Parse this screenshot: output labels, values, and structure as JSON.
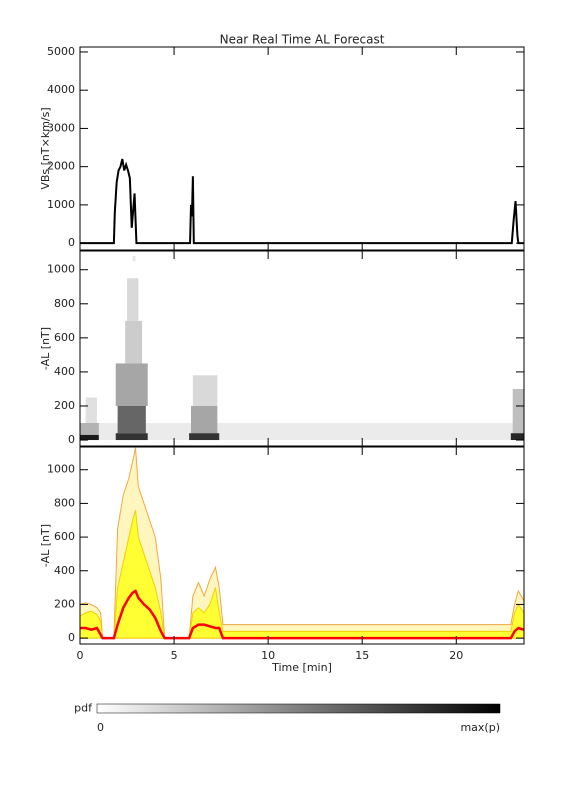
{
  "chart_data": [
    {
      "type": "line",
      "title": "Near Real Time AL Forecast",
      "ylabel": "VBs [nT×km/s]",
      "xlim": [
        0,
        23.6
      ],
      "xticks": [
        0,
        5,
        10,
        15,
        20
      ],
      "ylim": [
        -180,
        5130
      ],
      "yticks": [
        0,
        1000,
        2000,
        3000,
        4000,
        5000
      ],
      "color": "#000000",
      "x": [
        0,
        1.8,
        1.85,
        1.95,
        2.05,
        2.15,
        2.25,
        2.35,
        2.45,
        2.55,
        2.65,
        2.75,
        2.85,
        2.9,
        3.0,
        5.85,
        5.9,
        5.95,
        6.0,
        6.05,
        22.95,
        23.05,
        23.15,
        23.25,
        23.3,
        23.6
      ],
      "values": [
        0,
        0,
        800,
        1600,
        1900,
        2000,
        2200,
        1900,
        2050,
        1900,
        1700,
        400,
        1000,
        1300,
        0,
        0,
        1000,
        700,
        1750,
        0,
        0,
        600,
        1100,
        200,
        0,
        0
      ]
    },
    {
      "type": "heatmap",
      "ylabel": "-AL [nT]",
      "xlim": [
        0,
        23.6
      ],
      "xticks": [
        0,
        5,
        10,
        15,
        20
      ],
      "ylim": [
        -35,
        1110
      ],
      "yticks": [
        0,
        200,
        400,
        600,
        800,
        1000
      ],
      "cells": [
        {
          "x": [
            0,
            23.6
          ],
          "y": [
            0,
            100
          ],
          "p": 0.08
        },
        {
          "x": [
            0.3,
            0.9
          ],
          "y": [
            100,
            250
          ],
          "p": 0.12
        },
        {
          "x": [
            0,
            1.0
          ],
          "y": [
            30,
            100
          ],
          "p": 0.3
        },
        {
          "x": [
            0,
            1.0
          ],
          "y": [
            0,
            30
          ],
          "p": 0.9
        },
        {
          "x": [
            2.8,
            2.95
          ],
          "y": [
            1050,
            1080
          ],
          "p": 0.1
        },
        {
          "x": [
            2.5,
            3.1
          ],
          "y": [
            700,
            950
          ],
          "p": 0.15
        },
        {
          "x": [
            2.4,
            3.3
          ],
          "y": [
            450,
            700
          ],
          "p": 0.2
        },
        {
          "x": [
            1.9,
            3.6
          ],
          "y": [
            200,
            450
          ],
          "p": 0.35
        },
        {
          "x": [
            2.0,
            3.5
          ],
          "y": [
            40,
            200
          ],
          "p": 0.6
        },
        {
          "x": [
            1.9,
            3.6
          ],
          "y": [
            0,
            40
          ],
          "p": 0.8
        },
        {
          "x": [
            6.0,
            7.3
          ],
          "y": [
            200,
            380
          ],
          "p": 0.15
        },
        {
          "x": [
            5.9,
            7.3
          ],
          "y": [
            40,
            200
          ],
          "p": 0.35
        },
        {
          "x": [
            5.8,
            7.4
          ],
          "y": [
            0,
            40
          ],
          "p": 0.8
        },
        {
          "x": [
            23.0,
            23.6
          ],
          "y": [
            40,
            300
          ],
          "p": 0.25
        },
        {
          "x": [
            22.9,
            23.6
          ],
          "y": [
            0,
            40
          ],
          "p": 0.85
        }
      ],
      "colorbar": {
        "label": "pdf",
        "ticks": [
          0,
          {
            "value": 1,
            "label": "max(p)"
          }
        ]
      }
    },
    {
      "type": "area",
      "ylabel": "-AL [nT]",
      "xlabel": "Time [min]",
      "xlim": [
        0,
        23.6
      ],
      "xticks": [
        0,
        5,
        10,
        15,
        20
      ],
      "ylim": [
        -35,
        1135
      ],
      "yticks": [
        0,
        200,
        400,
        600,
        800,
        1000
      ],
      "x": [
        0,
        0.3,
        0.6,
        0.9,
        1.1,
        1.2,
        1.8,
        2.0,
        2.3,
        2.6,
        2.8,
        2.95,
        3.1,
        3.4,
        3.7,
        4.0,
        4.3,
        4.5,
        5.8,
        6.0,
        6.3,
        6.6,
        6.9,
        7.2,
        7.4,
        7.6,
        22.9,
        23.1,
        23.3,
        23.6
      ],
      "series": [
        {
          "color": "#f2a840",
          "fill": "#fff6bf",
          "values": [
            200,
            210,
            200,
            180,
            150,
            0,
            0,
            650,
            850,
            950,
            1050,
            1130,
            900,
            800,
            700,
            600,
            350,
            0,
            0,
            250,
            330,
            250,
            350,
            420,
            300,
            80,
            80,
            200,
            280,
            220
          ]
        },
        {
          "color": "#f0d000",
          "fill": "#ffff33",
          "values": [
            130,
            150,
            160,
            140,
            100,
            0,
            0,
            300,
            450,
            600,
            700,
            760,
            600,
            500,
            400,
            300,
            150,
            0,
            0,
            150,
            180,
            150,
            200,
            300,
            150,
            40,
            40,
            150,
            200,
            150
          ]
        },
        {
          "color": "#ff0000",
          "values": [
            60,
            60,
            50,
            60,
            20,
            0,
            0,
            80,
            180,
            240,
            270,
            280,
            240,
            200,
            170,
            120,
            40,
            0,
            0,
            60,
            80,
            80,
            70,
            60,
            60,
            0,
            0,
            40,
            60,
            50
          ]
        }
      ]
    }
  ]
}
